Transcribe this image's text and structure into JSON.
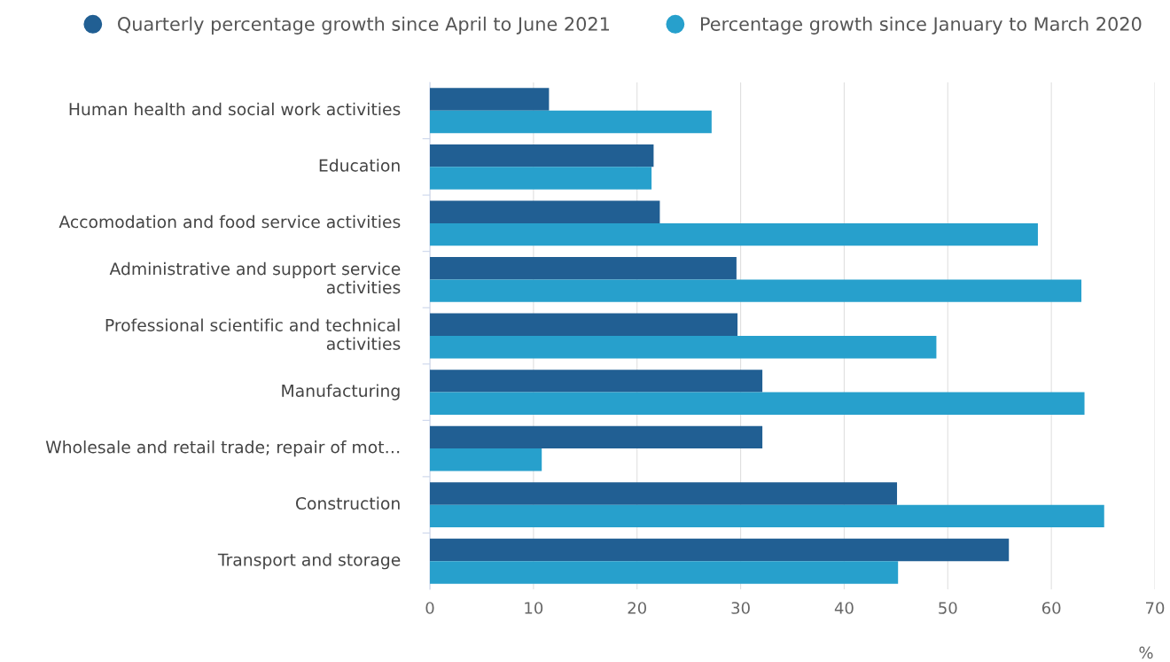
{
  "chart_data": {
    "type": "bar",
    "orientation": "horizontal",
    "categories": [
      "Human health and social work activities",
      "Education",
      "Accomodation and food service activities",
      "Administrative and support service\nactivities",
      "Professional scientific and technical\nactivities",
      "Manufacturing",
      "Wholesale and retail trade; repair of mot…",
      "Construction",
      "Transport and storage"
    ],
    "series": [
      {
        "name": "Quarterly percentage growth since April to June 2021",
        "color": "#215f93",
        "values": [
          11.5,
          21.6,
          22.2,
          29.6,
          29.7,
          32.1,
          32.1,
          45.1,
          55.9
        ]
      },
      {
        "name": "Percentage growth since January to March 2020",
        "color": "#27a0cc",
        "values": [
          27.2,
          21.4,
          58.7,
          62.9,
          48.9,
          63.2,
          10.8,
          65.1,
          45.2
        ]
      }
    ],
    "xlabel": "%",
    "xlim": [
      0,
      70
    ],
    "xticks": [
      0,
      10,
      20,
      30,
      40,
      50,
      60,
      70
    ],
    "grid": "x",
    "legend": "top"
  }
}
